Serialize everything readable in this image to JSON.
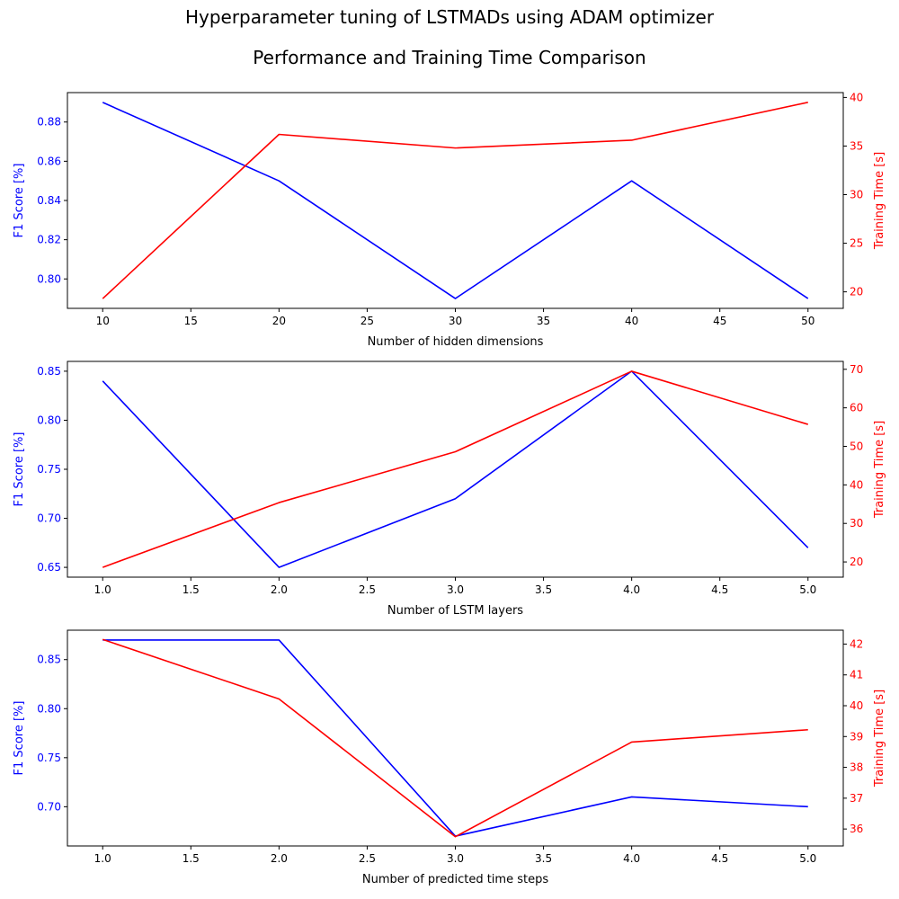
{
  "figure": {
    "title": "Hyperparameter tuning of LSTMADs using ADAM optimizer",
    "subtitle": "Performance and Training Time Comparison"
  },
  "colors": {
    "f1": "#0000ff",
    "time": "#ff0000",
    "axis": "#000000"
  },
  "chart_data": [
    {
      "type": "line",
      "xlabel": "Number of hidden dimensions",
      "ylabel_left": "F1 Score [%]",
      "ylabel_right": "Training Time [s]",
      "x": [
        10,
        20,
        30,
        40,
        50
      ],
      "xlim": [
        8,
        52
      ],
      "xticks": [
        10,
        15,
        20,
        25,
        30,
        35,
        40,
        45,
        50
      ],
      "xtick_labels": [
        "10",
        "15",
        "20",
        "25",
        "30",
        "35",
        "40",
        "45",
        "50"
      ],
      "series": [
        {
          "axis": "left",
          "color": "#0000ff",
          "values": [
            0.89,
            0.85,
            0.79,
            0.85,
            0.79
          ]
        },
        {
          "axis": "right",
          "color": "#ff0000",
          "values": [
            19.3,
            36.2,
            34.8,
            35.6,
            39.5
          ]
        }
      ],
      "ylim_left": [
        0.785,
        0.895
      ],
      "yticks_left": [
        0.8,
        0.82,
        0.84,
        0.86,
        0.88
      ],
      "ytick_labels_left": [
        "0.80",
        "0.82",
        "0.84",
        "0.86",
        "0.88"
      ],
      "ylim_right": [
        18.3,
        40.5
      ],
      "yticks_right": [
        20,
        25,
        30,
        35,
        40
      ],
      "ytick_labels_right": [
        "20",
        "25",
        "30",
        "35",
        "40"
      ]
    },
    {
      "type": "line",
      "xlabel": "Number of LSTM layers",
      "ylabel_left": "F1 Score [%]",
      "ylabel_right": "Training Time [s]",
      "x": [
        1,
        2,
        3,
        4,
        5
      ],
      "xlim": [
        0.8,
        5.2
      ],
      "xticks": [
        1.0,
        1.5,
        2.0,
        2.5,
        3.0,
        3.5,
        4.0,
        4.5,
        5.0
      ],
      "xtick_labels": [
        "1.0",
        "1.5",
        "2.0",
        "2.5",
        "3.0",
        "3.5",
        "4.0",
        "4.5",
        "5.0"
      ],
      "series": [
        {
          "axis": "left",
          "color": "#0000ff",
          "values": [
            0.84,
            0.65,
            0.72,
            0.85,
            0.67
          ]
        },
        {
          "axis": "right",
          "color": "#ff0000",
          "values": [
            18.6,
            35.4,
            48.6,
            69.5,
            55.7
          ]
        }
      ],
      "ylim_left": [
        0.64,
        0.86
      ],
      "yticks_left": [
        0.65,
        0.7,
        0.75,
        0.8,
        0.85
      ],
      "ytick_labels_left": [
        "0.65",
        "0.70",
        "0.75",
        "0.80",
        "0.85"
      ],
      "ylim_right": [
        16.05,
        72.05
      ],
      "yticks_right": [
        20,
        30,
        40,
        50,
        60,
        70
      ],
      "ytick_labels_right": [
        "20",
        "30",
        "40",
        "50",
        "60",
        "70"
      ]
    },
    {
      "type": "line",
      "xlabel": "Number of predicted time steps",
      "ylabel_left": "F1 Score [%]",
      "ylabel_right": "Training Time [s]",
      "x": [
        1,
        2,
        3,
        4,
        5
      ],
      "xlim": [
        0.8,
        5.2
      ],
      "xticks": [
        1.0,
        1.5,
        2.0,
        2.5,
        3.0,
        3.5,
        4.0,
        4.5,
        5.0
      ],
      "xtick_labels": [
        "1.0",
        "1.5",
        "2.0",
        "2.5",
        "3.0",
        "3.5",
        "4.0",
        "4.5",
        "5.0"
      ],
      "series": [
        {
          "axis": "left",
          "color": "#0000ff",
          "values": [
            0.87,
            0.87,
            0.67,
            0.71,
            0.7
          ]
        },
        {
          "axis": "right",
          "color": "#ff0000",
          "values": [
            42.15,
            40.22,
            35.75,
            38.82,
            39.22
          ]
        }
      ],
      "ylim_left": [
        0.66,
        0.88
      ],
      "yticks_left": [
        0.7,
        0.75,
        0.8,
        0.85
      ],
      "ytick_labels_left": [
        "0.70",
        "0.75",
        "0.80",
        "0.85"
      ],
      "ylim_right": [
        35.45,
        42.45
      ],
      "yticks_right": [
        36,
        37,
        38,
        39,
        40,
        41,
        42
      ],
      "ytick_labels_right": [
        "36",
        "37",
        "38",
        "39",
        "40",
        "41",
        "42"
      ]
    }
  ]
}
